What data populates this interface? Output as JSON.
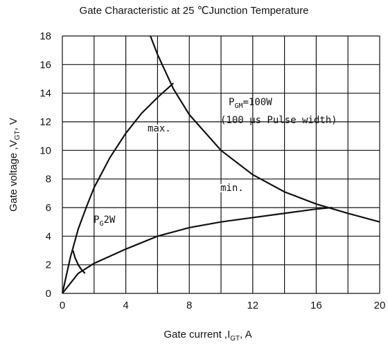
{
  "chart_data": {
    "type": "line",
    "title": "Gate Characteristic at 25 ℃Junction Temperature",
    "x_label": {
      "text": "Gate current ,I",
      "sub": "GT",
      "unit": ",  A"
    },
    "y_label": {
      "text": "Gate voltage ,V",
      "sub": "GT",
      "unit": ",  V"
    },
    "xlim": [
      0,
      20
    ],
    "ylim": [
      0,
      18
    ],
    "xticks": [
      0,
      4,
      8,
      12,
      16,
      20
    ],
    "xminor": [
      2,
      6,
      10,
      14,
      18
    ],
    "yticks": [
      0,
      2,
      4,
      6,
      8,
      10,
      12,
      14,
      16,
      18
    ],
    "grid": true,
    "series": [
      {
        "name": "max.",
        "color": "#111111",
        "x": [
          0,
          0.5,
          1,
          1.5,
          2,
          3,
          4,
          5,
          6,
          7
        ],
        "values": [
          0,
          2.5,
          4.5,
          6,
          7.4,
          9.5,
          11.2,
          12.6,
          13.7,
          14.7
        ]
      },
      {
        "name": "min.",
        "color": "#111111",
        "x": [
          0,
          1,
          2,
          4,
          6,
          8,
          10,
          12,
          14,
          16,
          17
        ],
        "values": [
          0,
          1.4,
          2.1,
          3.1,
          4,
          4.6,
          5,
          5.3,
          5.6,
          5.9,
          6
        ]
      },
      {
        "color": "#111111",
        "x": [
          5.55,
          6,
          7,
          8,
          10,
          12,
          14,
          16,
          18,
          20
        ],
        "values": [
          18,
          16.7,
          14.3,
          12.5,
          10,
          8.3,
          7.1,
          6.25,
          5.6,
          5
        ]
      },
      {
        "color": "#111111",
        "x": [
          0.67,
          0.8,
          1,
          1.2,
          1.43
        ],
        "values": [
          3,
          2.5,
          2,
          1.67,
          1.4
        ]
      }
    ],
    "annotations": {
      "pgm": {
        "text": "P",
        "sub": "GM",
        "rest": "=100W"
      },
      "pulse": "(100 μs  Pulse width)",
      "pg": {
        "text": "P",
        "sub": "G",
        "rest": "2W"
      }
    }
  }
}
